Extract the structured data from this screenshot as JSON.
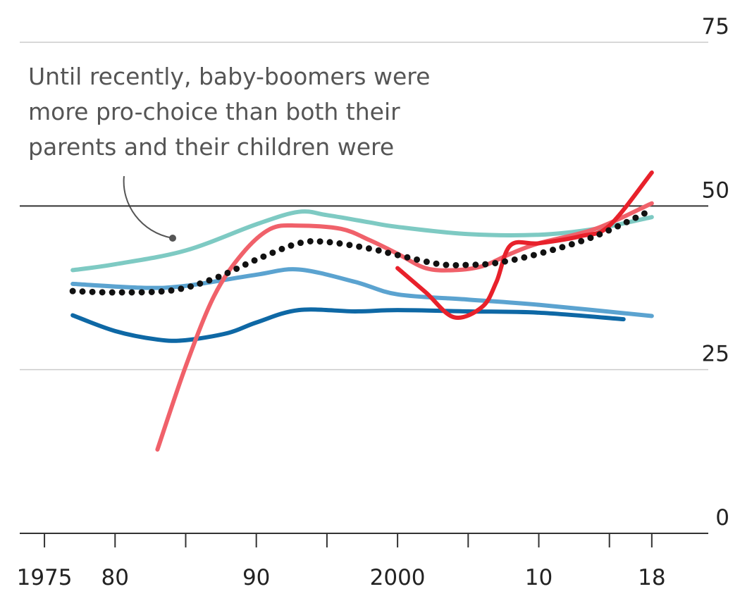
{
  "chart_data": {
    "type": "line",
    "annotation": [
      "Until recently, baby-boomers were",
      "more pro-choice than both their",
      "parents and their children were"
    ],
    "xlim": [
      1973.25,
      2022
    ],
    "xticks": [
      {
        "value": 1975,
        "label": "1975"
      },
      {
        "value": 1980,
        "label": "80"
      },
      {
        "value": 1990,
        "label": "90"
      },
      {
        "value": 2000,
        "label": "2000"
      },
      {
        "value": 2010,
        "label": "10"
      },
      {
        "value": 2018,
        "label": "18"
      }
    ],
    "xminor_ticks": [
      1985,
      1995,
      2005,
      2015
    ],
    "ylim": [
      0,
      75
    ],
    "yticks": [
      0,
      25,
      50,
      75
    ],
    "grid": true,
    "reference_line": 50,
    "series": [
      {
        "color": "#7ecac3",
        "style": "solid",
        "x": [
          1977,
          1980,
          1985,
          1990,
          1993,
          1995,
          1998,
          2000,
          2005,
          2010,
          2014,
          2018
        ],
        "values": [
          40.2,
          41.1,
          43.2,
          47.2,
          49.1,
          48.6,
          47.5,
          46.8,
          45.7,
          45.6,
          46.5,
          48.3
        ]
      },
      {
        "color": "#5ba3d0",
        "style": "solid",
        "x": [
          1977,
          1982,
          1985,
          1990,
          1993,
          1997,
          2000,
          2005,
          2010,
          2018
        ],
        "values": [
          38.1,
          37.5,
          37.8,
          39.5,
          40.3,
          38.4,
          36.5,
          35.7,
          34.9,
          33.2
        ]
      },
      {
        "color": "#0e68a5",
        "style": "solid",
        "x": [
          1977,
          1980,
          1983,
          1985,
          1988,
          1990,
          1993,
          1997,
          2000,
          2005,
          2010,
          2016
        ],
        "values": [
          33.3,
          30.9,
          29.6,
          29.5,
          30.6,
          32.2,
          34.1,
          33.9,
          34.1,
          33.9,
          33.7,
          32.7
        ]
      },
      {
        "color": "#f0616a",
        "style": "solid",
        "x": [
          1983,
          1985,
          1987,
          1989,
          1991,
          1993,
          1996,
          1998,
          2000,
          2002,
          2004,
          2006,
          2008,
          2010,
          2014,
          2018
        ],
        "values": [
          12.8,
          25.5,
          36.2,
          42.7,
          46.5,
          47,
          46.5,
          44.8,
          42.7,
          40.5,
          40.2,
          40.8,
          42.7,
          44.3,
          46.5,
          50.4
        ]
      },
      {
        "color": "#e8212b",
        "style": "solid",
        "x": [
          2000,
          2002,
          2004,
          2006,
          2007,
          2008,
          2010,
          2013,
          2015,
          2018
        ],
        "values": [
          40.5,
          36.8,
          33,
          34.6,
          38.4,
          44,
          44.3,
          45.4,
          47,
          55.1
        ]
      },
      {
        "color": "#111111",
        "style": "dotted",
        "x": [
          1977,
          1980,
          1984,
          1987,
          1990,
          1993,
          1995,
          1998,
          2000,
          2003,
          2005,
          2007,
          2010,
          2014,
          2018
        ],
        "values": [
          37,
          36.8,
          37.1,
          38.9,
          41.8,
          44.3,
          44.5,
          43.5,
          42.5,
          41.1,
          41,
          41.3,
          42.7,
          45.4,
          49.4
        ]
      }
    ]
  }
}
